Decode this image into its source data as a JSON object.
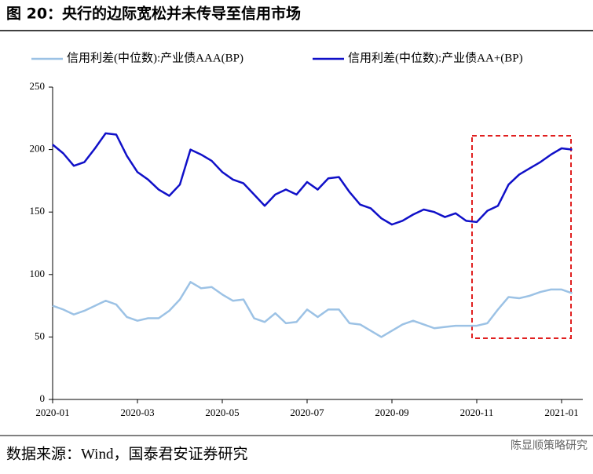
{
  "title": "图 20：央行的边际宽松并未传导至信用市场",
  "source": "数据来源：Wind，国泰君安证券研究",
  "watermark": "陈显顺策略研究",
  "chart_data": {
    "type": "line",
    "categories": [
      "2020-01",
      null,
      null,
      null,
      null,
      null,
      null,
      null,
      "2020-03",
      null,
      null,
      null,
      null,
      null,
      null,
      null,
      "2020-05",
      null,
      null,
      null,
      null,
      null,
      null,
      null,
      "2020-07",
      null,
      null,
      null,
      null,
      null,
      null,
      null,
      "2020-09",
      null,
      null,
      null,
      null,
      null,
      null,
      null,
      "2020-11",
      null,
      null,
      null,
      null,
      null,
      null,
      null,
      "2021-01",
      null
    ],
    "series": [
      {
        "name": "信用利差(中位数):产业债AAA(BP)",
        "color": "#9cc2e5",
        "values": [
          75,
          72,
          68,
          71,
          75,
          79,
          76,
          66,
          63,
          65,
          65,
          71,
          80,
          94,
          89,
          90,
          84,
          79,
          80,
          65,
          62,
          69,
          61,
          62,
          72,
          66,
          72,
          72,
          61,
          60,
          55,
          50,
          55,
          60,
          63,
          60,
          57,
          58,
          59,
          59,
          59,
          61,
          72,
          82,
          81,
          83,
          86,
          88,
          88,
          85
        ]
      },
      {
        "name": "信用利差(中位数):产业债AA+(BP)",
        "color": "#1010c8",
        "values": [
          204,
          197,
          187,
          190,
          201,
          213,
          212,
          195,
          182,
          176,
          168,
          163,
          172,
          200,
          196,
          191,
          182,
          176,
          173,
          164,
          155,
          164,
          168,
          164,
          174,
          168,
          177,
          178,
          166,
          156,
          153,
          145,
          140,
          143,
          148,
          152,
          150,
          146,
          149,
          143,
          142,
          151,
          155,
          172,
          180,
          185,
          190,
          196,
          201,
          200
        ]
      }
    ],
    "ylim": [
      0,
      250
    ],
    "yticks": [
      0,
      50,
      100,
      150,
      200,
      250
    ],
    "grid": false
  }
}
